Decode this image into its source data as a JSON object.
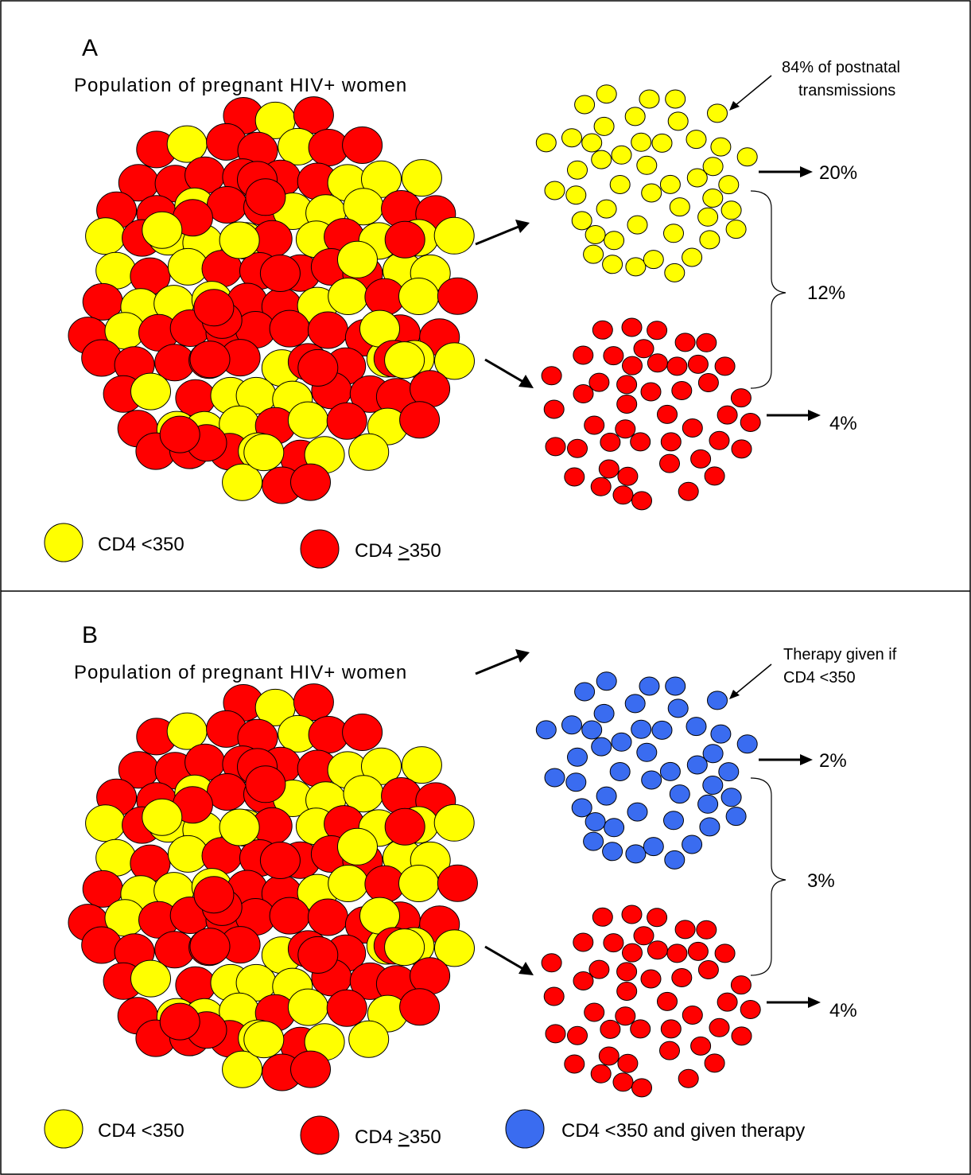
{
  "colors": {
    "yellow": "#ffff00",
    "red": "#ff0000",
    "blue": "#3a6cf0",
    "stroke": "#000000",
    "border": "#000000"
  },
  "panels": [
    {
      "letter": "A",
      "title": "Population of pregnant HIV+ women",
      "annotation_lines": [
        "84% of postnatal",
        "transmissions"
      ],
      "upper_cluster_color": "yellow",
      "upper_rate": "20%",
      "lower_rate": "4%",
      "combined_rate": "12%",
      "legend": [
        {
          "swatch": "yellow",
          "label": "CD4 <350"
        },
        {
          "swatch": "red",
          "label_prefix": "CD4 ",
          "label_underlined": ">",
          "label_suffix": "350"
        }
      ]
    },
    {
      "letter": "B",
      "title": "Population of pregnant HIV+ women",
      "annotation_lines": [
        "Therapy given if",
        "CD4 <350"
      ],
      "upper_cluster_color": "blue",
      "upper_rate": "2%",
      "lower_rate": "4%",
      "combined_rate": "3%",
      "legend": [
        {
          "swatch": "yellow",
          "label": "CD4 <350"
        },
        {
          "swatch": "red",
          "label_prefix": "CD4 ",
          "label_underlined": ">",
          "label_suffix": "350"
        },
        {
          "swatch": "blue",
          "label": "CD4 <350 and given therapy"
        }
      ]
    }
  ]
}
